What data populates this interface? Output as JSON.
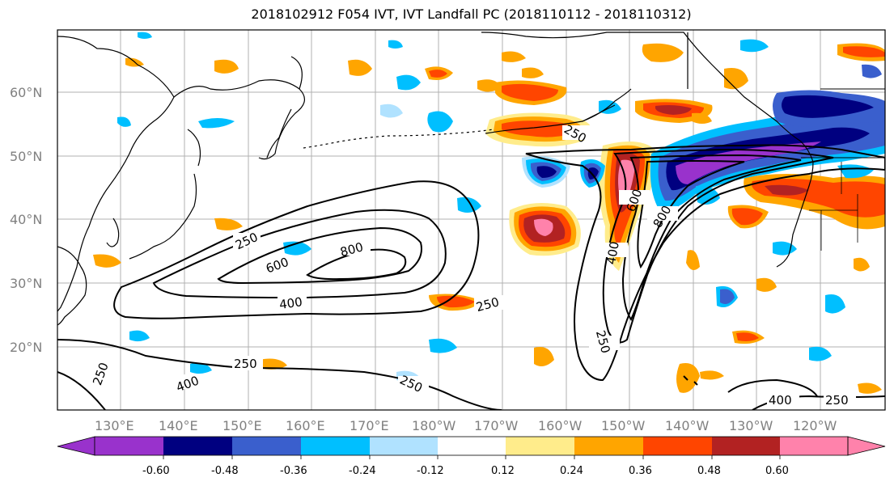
{
  "title": "2018102912 F054 IVT, IVT Landfall PC (2018110112 - 2018110312)",
  "lat_labels": [
    "60°N",
    "50°N",
    "40°N",
    "30°N",
    "20°N"
  ],
  "lon_labels": [
    "130°E",
    "140°E",
    "150°E",
    "160°E",
    "170°E",
    "180°W",
    "170°W",
    "160°W",
    "150°W",
    "140°W",
    "130°W",
    "120°W"
  ],
  "contour_labels": [
    "250",
    "400",
    "600",
    "800"
  ],
  "colorbar": {
    "colors": [
      "#9932CC",
      "#000080",
      "#3A5FCD",
      "#00BFFF",
      "#B0E2FF",
      "#FFFFFF",
      "#FFEC8B",
      "#FFA500",
      "#FF4500",
      "#B22222",
      "#FF82AB"
    ],
    "ticks": [
      "-0.60",
      "-0.48",
      "-0.36",
      "-0.24",
      "-0.12",
      "0.12",
      "0.24",
      "0.36",
      "0.48",
      "0.60"
    ]
  },
  "colors": {
    "contour": "#000000",
    "coast": "#000000",
    "grid": "#b0b0b0"
  }
}
